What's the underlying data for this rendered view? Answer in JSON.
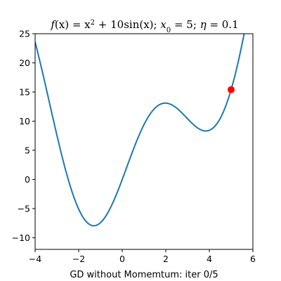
{
  "chart_data": {
    "type": "line",
    "title": {
      "f": "f",
      "x1": "(x) = x",
      "exp": "2",
      "plus": " + 10sin(x); ",
      "x0": "x",
      "sub0": "0",
      "eq5": " = 5; ",
      "eta": "η",
      "eta_val": " = 0.1"
    },
    "xlabel": "GD without Momemtum: iter 0/5",
    "ylabel": "",
    "xlim": [
      -4,
      6
    ],
    "ylim": [
      -12,
      25
    ],
    "xticks": [
      "-4",
      "-2",
      "0",
      "2",
      "4",
      "6"
    ],
    "yticks": [
      "-10",
      "-5",
      "0",
      "5",
      "10",
      "15",
      "20",
      "25"
    ],
    "grid": false,
    "series": [
      {
        "function": "x^2 + 10*sin(x)",
        "x_range": [
          -4,
          6
        ],
        "color": "#1f77b4"
      }
    ],
    "points": [
      {
        "x": 5,
        "y": 15.41,
        "color": "#ff0000"
      }
    ]
  }
}
